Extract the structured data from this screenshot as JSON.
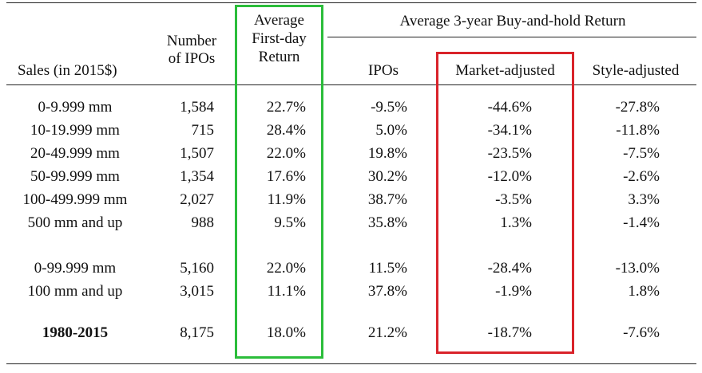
{
  "header": {
    "sales_label": "Sales (in 2015$)",
    "num_ipos_line1": "Number",
    "num_ipos_line2": "of IPOs",
    "first_day_line1": "Average",
    "first_day_line2": "First-day",
    "first_day_line3": "Return",
    "bh_group": "Average 3-year Buy-and-hold Return",
    "col_ipos": "IPOs",
    "col_market": "Market-adjusted",
    "col_style": "Style-adjusted"
  },
  "rows": [
    {
      "sales": "0-9.999 mm",
      "n": "1,584",
      "fd": "22.7%",
      "ipos": "-9.5%",
      "market": "-44.6%",
      "style": "-27.8%"
    },
    {
      "sales": "10-19.999 mm",
      "n": "715",
      "fd": "28.4%",
      "ipos": "5.0%",
      "market": "-34.1%",
      "style": "-11.8%"
    },
    {
      "sales": "20-49.999 mm",
      "n": "1,507",
      "fd": "22.0%",
      "ipos": "19.8%",
      "market": "-23.5%",
      "style": "-7.5%"
    },
    {
      "sales": "50-99.999 mm",
      "n": "1,354",
      "fd": "17.6%",
      "ipos": "30.2%",
      "market": "-12.0%",
      "style": "-2.6%"
    },
    {
      "sales": "100-499.999 mm",
      "n": "2,027",
      "fd": "11.9%",
      "ipos": "38.7%",
      "market": "-3.5%",
      "style": "3.3%"
    },
    {
      "sales": "500 mm and up",
      "n": "988",
      "fd": "9.5%",
      "ipos": "35.8%",
      "market": "1.3%",
      "style": "-1.4%"
    },
    {
      "sales": "0-99.999 mm",
      "n": "5,160",
      "fd": "22.0%",
      "ipos": "11.5%",
      "market": "-28.4%",
      "style": "-13.0%"
    },
    {
      "sales": "100 mm and up",
      "n": "3,015",
      "fd": "11.1%",
      "ipos": "37.8%",
      "market": "-1.9%",
      "style": "1.8%"
    },
    {
      "sales": "1980-2015",
      "n": "8,175",
      "fd": "18.0%",
      "ipos": "21.2%",
      "market": "-18.7%",
      "style": "-7.6%",
      "bold": true
    }
  ],
  "highlights": {
    "first_day_color": "#2bbd3a",
    "market_color": "#d9232a"
  }
}
